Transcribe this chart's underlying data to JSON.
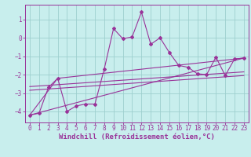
{
  "title": "",
  "xlabel": "Windchill (Refroidissement éolien,°C)",
  "ylabel": "",
  "bg_color": "#c8eeed",
  "grid_color": "#9ecfce",
  "line_color": "#993399",
  "xlim": [
    -0.5,
    23.5
  ],
  "ylim": [
    -4.6,
    1.8
  ],
  "xticks": [
    0,
    1,
    2,
    3,
    4,
    5,
    6,
    7,
    8,
    9,
    10,
    11,
    12,
    13,
    14,
    15,
    16,
    17,
    18,
    19,
    20,
    21,
    22,
    23
  ],
  "yticks": [
    -4,
    -3,
    -2,
    -1,
    0,
    1
  ],
  "series": [
    [
      0,
      -4.2
    ],
    [
      1,
      -4.1
    ],
    [
      2,
      -2.7
    ],
    [
      3,
      -2.2
    ],
    [
      4,
      -4.0
    ],
    [
      5,
      -3.7
    ],
    [
      6,
      -3.6
    ],
    [
      7,
      -3.6
    ],
    [
      8,
      -1.7
    ],
    [
      9,
      0.5
    ],
    [
      10,
      -0.05
    ],
    [
      11,
      0.05
    ],
    [
      12,
      1.4
    ],
    [
      13,
      -0.35
    ],
    [
      14,
      0.0
    ],
    [
      15,
      -0.8
    ],
    [
      16,
      -1.5
    ],
    [
      17,
      -1.6
    ],
    [
      18,
      -1.95
    ],
    [
      19,
      -2.0
    ],
    [
      20,
      -1.05
    ],
    [
      21,
      -2.05
    ],
    [
      22,
      -1.15
    ],
    [
      23,
      -1.1
    ]
  ],
  "trend_lines": [
    {
      "x": [
        0,
        23
      ],
      "y": [
        -2.65,
        -1.85
      ]
    },
    {
      "x": [
        0,
        23
      ],
      "y": [
        -2.85,
        -2.05
      ]
    },
    {
      "x": [
        0,
        23
      ],
      "y": [
        -4.2,
        -1.1
      ]
    }
  ],
  "v_line": [
    [
      0,
      -4.2
    ],
    [
      3,
      -2.2
    ],
    [
      23,
      -1.1
    ]
  ],
  "tick_fontsize": 5.5,
  "xlabel_fontsize": 6.5
}
